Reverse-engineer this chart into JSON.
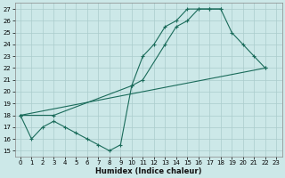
{
  "xlabel": "Humidex (Indice chaleur)",
  "bg_color": "#cce8e8",
  "grid_color": "#aacccc",
  "line_color": "#1a6b5a",
  "xlim": [
    -0.5,
    23.5
  ],
  "ylim": [
    14.5,
    27.5
  ],
  "xticks": [
    0,
    1,
    2,
    3,
    4,
    5,
    6,
    7,
    8,
    9,
    10,
    11,
    12,
    13,
    14,
    15,
    16,
    17,
    18,
    19,
    20,
    21,
    22,
    23
  ],
  "yticks": [
    15,
    16,
    17,
    18,
    19,
    20,
    21,
    22,
    23,
    24,
    25,
    26,
    27
  ],
  "line1_x": [
    0,
    1,
    2,
    3,
    4,
    5,
    6,
    7,
    8,
    9,
    10,
    11,
    12,
    13,
    14,
    15,
    16,
    17,
    18
  ],
  "line1_y": [
    18,
    16,
    17,
    17.5,
    17,
    16.5,
    16,
    15.5,
    15,
    15.5,
    20.5,
    23,
    24,
    25.5,
    26,
    27,
    27,
    27,
    27
  ],
  "line2_x": [
    0,
    3,
    10,
    11,
    13,
    14,
    15,
    16,
    17,
    18,
    19,
    20,
    21,
    22
  ],
  "line2_y": [
    18,
    18,
    20.5,
    21,
    24,
    25.5,
    26,
    27,
    27,
    27,
    25,
    24,
    23,
    22
  ],
  "line3_x": [
    0,
    22
  ],
  "line3_y": [
    18,
    22
  ]
}
